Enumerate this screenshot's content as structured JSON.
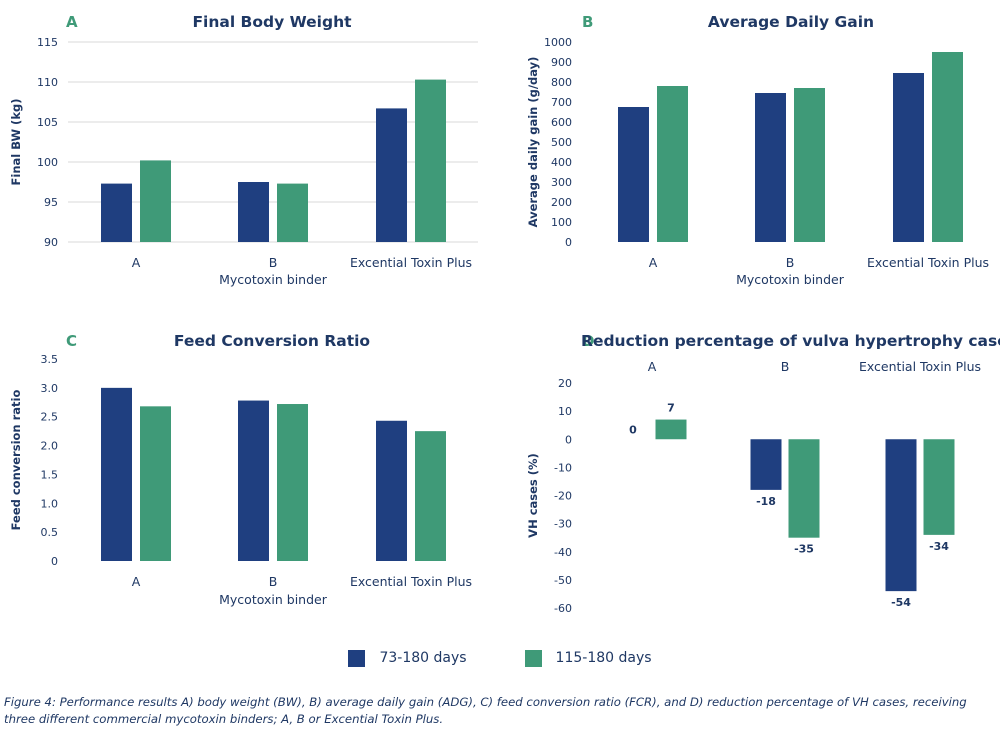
{
  "legend": {
    "series": [
      {
        "name": "73-180 days",
        "color": "#1f3f80"
      },
      {
        "name": "115-180 days",
        "color": "#3f9a78"
      }
    ]
  },
  "caption": "Figure 4: Performance results A) body weight (BW), B) average daily gain (ADG), C) feed conversion ratio (FCR), and D) reduction percentage of VH cases, receiving three different commercial mycotoxin binders; A, B or Excential Toxin Plus.",
  "chart_data": [
    {
      "panel": "A",
      "type": "bar",
      "title": "Final Body Weight",
      "xlabel": "Mycotoxin binder",
      "ylabel": "Final BW (kg)",
      "categories": [
        "A",
        "B",
        "Excential Toxin Plus"
      ],
      "series": [
        {
          "name": "73-180 days",
          "values": [
            97.3,
            97.5,
            106.7
          ]
        },
        {
          "name": "115-180 days",
          "values": [
            100.2,
            97.3,
            110.3
          ]
        }
      ],
      "ylim": [
        90,
        115
      ],
      "yticks": [
        90,
        95,
        100,
        105,
        110,
        115
      ],
      "grid": true
    },
    {
      "panel": "B",
      "type": "bar",
      "title": "Average Daily Gain",
      "xlabel": "Mycotoxin binder",
      "ylabel": "Average daily gain (g/day)",
      "categories": [
        "A",
        "B",
        "Excential Toxin Plus"
      ],
      "series": [
        {
          "name": "73-180 days",
          "values": [
            675,
            745,
            845
          ]
        },
        {
          "name": "115-180 days",
          "values": [
            780,
            770,
            950
          ]
        }
      ],
      "ylim": [
        0,
        1000
      ],
      "yticks": [
        0,
        100,
        200,
        300,
        400,
        500,
        600,
        700,
        800,
        900,
        1000
      ],
      "grid": false
    },
    {
      "panel": "C",
      "type": "bar",
      "title": "Feed Conversion Ratio",
      "xlabel": "Mycotoxin binder",
      "ylabel": "Feed conversion ratio",
      "categories": [
        "A",
        "B",
        "Excential Toxin Plus"
      ],
      "series": [
        {
          "name": "73-180 days",
          "values": [
            3.0,
            2.78,
            2.43
          ]
        },
        {
          "name": "115-180 days",
          "values": [
            2.68,
            2.72,
            2.25
          ]
        }
      ],
      "ylim": [
        0,
        3.5
      ],
      "yticks": [
        "0",
        "0.5",
        "1.0",
        "1.5",
        "2.0",
        "2.5",
        "3.0",
        "3.5"
      ],
      "grid": false
    },
    {
      "panel": "D",
      "type": "bar",
      "title": "Reduction percentage of vulva hypertrophy cases",
      "xlabel": "",
      "ylabel": "VH cases (%)",
      "categories": [
        "A",
        "B",
        "Excential Toxin Plus"
      ],
      "series": [
        {
          "name": "73-180 days",
          "values": [
            0,
            -18,
            -54
          ],
          "labels": [
            "0",
            "-18",
            "-54"
          ]
        },
        {
          "name": "115-180 days",
          "values": [
            7,
            -35,
            -34
          ],
          "labels": [
            "7",
            "-35",
            "-34"
          ]
        }
      ],
      "ylim": [
        -60,
        20
      ],
      "yticks": [
        -60,
        -50,
        -40,
        -30,
        -20,
        -10,
        0,
        10,
        20
      ],
      "category_axis_position": "top",
      "grid": false
    }
  ]
}
